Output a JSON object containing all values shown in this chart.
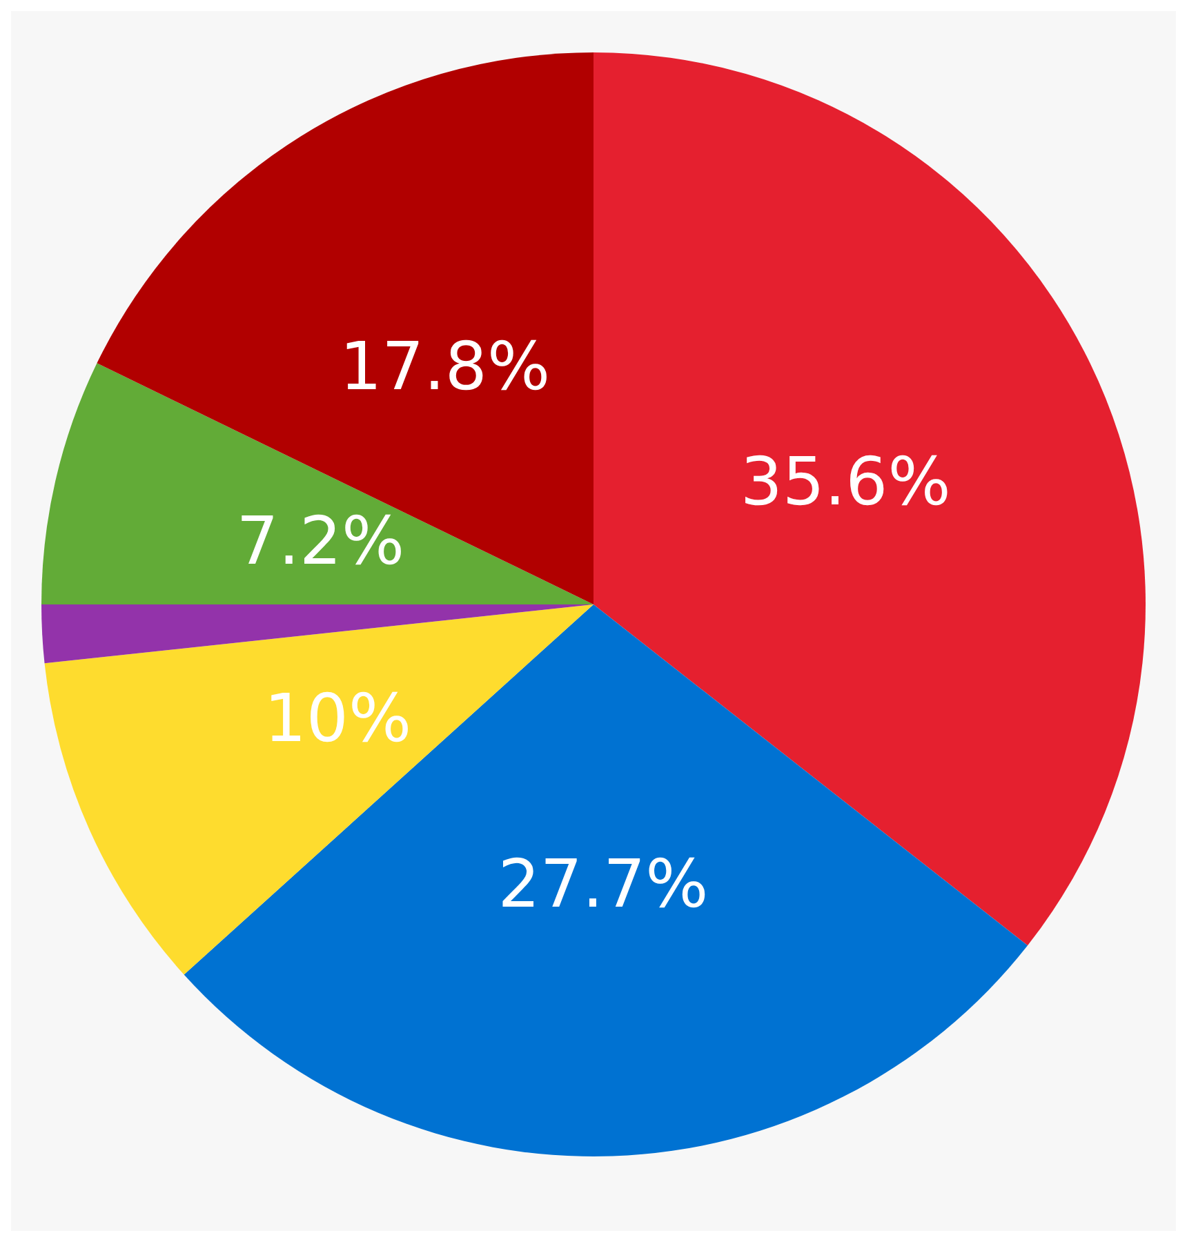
{
  "chart_data": {
    "type": "pie",
    "categories": [
      null,
      null,
      null,
      null,
      null,
      null
    ],
    "values": [
      35.6,
      27.7,
      10,
      1.7,
      7.2,
      17.8
    ],
    "colors": [
      "#e5202f",
      "#0072d2",
      "#fedc2e",
      "#9333aa",
      "#62ab37",
      "#b10000"
    ],
    "value_labels": [
      "35.6%",
      "27.7%",
      "10%",
      null,
      "7.2%",
      "17.8%"
    ]
  }
}
